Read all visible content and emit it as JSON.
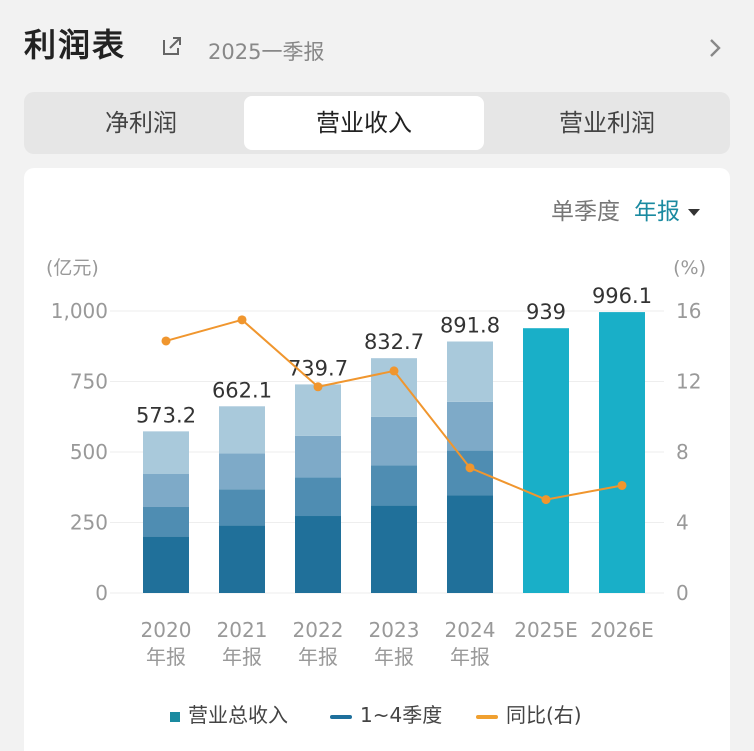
{
  "header": {
    "title": "利润表",
    "period": "2025一季报"
  },
  "tabs": [
    {
      "label": "净利润",
      "active": false
    },
    {
      "label": "营业收入",
      "active": true
    },
    {
      "label": "营业利润",
      "active": false
    }
  ],
  "period_switch": {
    "quarterly": "单季度",
    "annual": "年报"
  },
  "chart_data": {
    "type": "bar",
    "left_axis_label": "(亿元)",
    "right_axis_label": "(%)",
    "left_ticks": [
      "0",
      "250",
      "500",
      "750",
      "1,000"
    ],
    "right_ticks": [
      "0",
      "4",
      "8",
      "12",
      "16"
    ],
    "ylim": [
      0,
      1000
    ],
    "y2lim": [
      0,
      16
    ],
    "categories": [
      [
        "2020",
        "年报"
      ],
      [
        "2021",
        "年报"
      ],
      [
        "2022",
        "年报"
      ],
      [
        "2023",
        "年报"
      ],
      [
        "2024",
        "年报"
      ],
      [
        "2025E",
        ""
      ],
      [
        "2026E",
        ""
      ]
    ],
    "totals": [
      573.2,
      662.1,
      739.7,
      832.7,
      891.8,
      939,
      996.1
    ],
    "total_labels": [
      "573.2",
      "662.1",
      "739.7",
      "832.7",
      "891.8",
      "939",
      "996.1"
    ],
    "quarterly_cumulative": [
      [
        200,
        305,
        422,
        573.2
      ],
      [
        240,
        368,
        495,
        662.1
      ],
      [
        273,
        410,
        557,
        739.7
      ],
      [
        310,
        452,
        625,
        832.7
      ],
      [
        347,
        505,
        678,
        891.8
      ],
      null,
      null
    ],
    "yoy_growth": [
      14.3,
      15.5,
      11.7,
      12.6,
      7.1,
      5.3,
      6.1
    ],
    "colors": {
      "q1": "#20709a",
      "q2": "#4f8db2",
      "q3": "#7eaac8",
      "q4": "#a9c9db",
      "estimate": "#19afc8",
      "line": "#f0962e",
      "grid": "#eeeeee",
      "tick_text": "#999999",
      "label_text": "#333333"
    },
    "legend": [
      {
        "label": "营业总收入",
        "kind": "square"
      },
      {
        "label": "1~4季度",
        "kind": "line"
      },
      {
        "label": "同比(右)",
        "kind": "line-orange"
      }
    ]
  }
}
